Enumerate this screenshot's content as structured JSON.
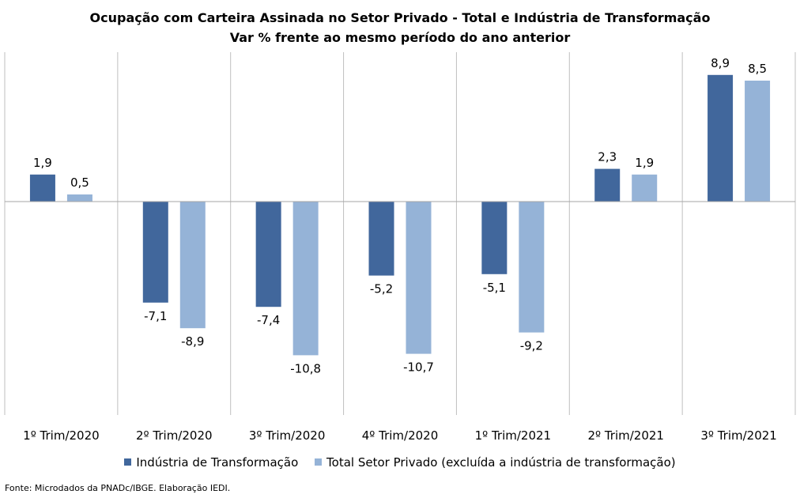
{
  "chart_data": {
    "type": "bar",
    "title": "Ocupação com Carteira Assinada no Setor Privado - Total e Indústria de Transformação",
    "subtitle": "Var % frente ao mesmo período do ano anterior",
    "categories": [
      "1º Trim/2020",
      "2º Trim/2020",
      "3º Trim/2020",
      "4º Trim/2020",
      "1º Trim/2021",
      "2º Trim/2021",
      "3º Trim/2021"
    ],
    "series": [
      {
        "name": "Indústria de Transformação",
        "values": [
          1.9,
          -7.1,
          -7.4,
          -5.2,
          -5.1,
          2.3,
          8.9
        ],
        "labels": [
          "1,9",
          "-7,1",
          "-7,4",
          "-5,2",
          "-5,1",
          "2,3",
          "8,9"
        ]
      },
      {
        "name": "Total Setor Privado (excluída a indústria de transformação)",
        "values": [
          0.5,
          -8.9,
          -10.8,
          -10.7,
          -9.2,
          1.9,
          8.5
        ],
        "labels": [
          "0,5",
          "-8,9",
          "-10,8",
          "-10,7",
          "-9,2",
          "1,9",
          "8,5"
        ]
      }
    ],
    "ylim": [
      -15,
      10.5
    ],
    "grid": false,
    "legend_position": "bottom",
    "colors": [
      "#41679C",
      "#95B3D7"
    ]
  },
  "source": "Fonte: Microdados da PNADc/IBGE. Elaboração IEDI."
}
